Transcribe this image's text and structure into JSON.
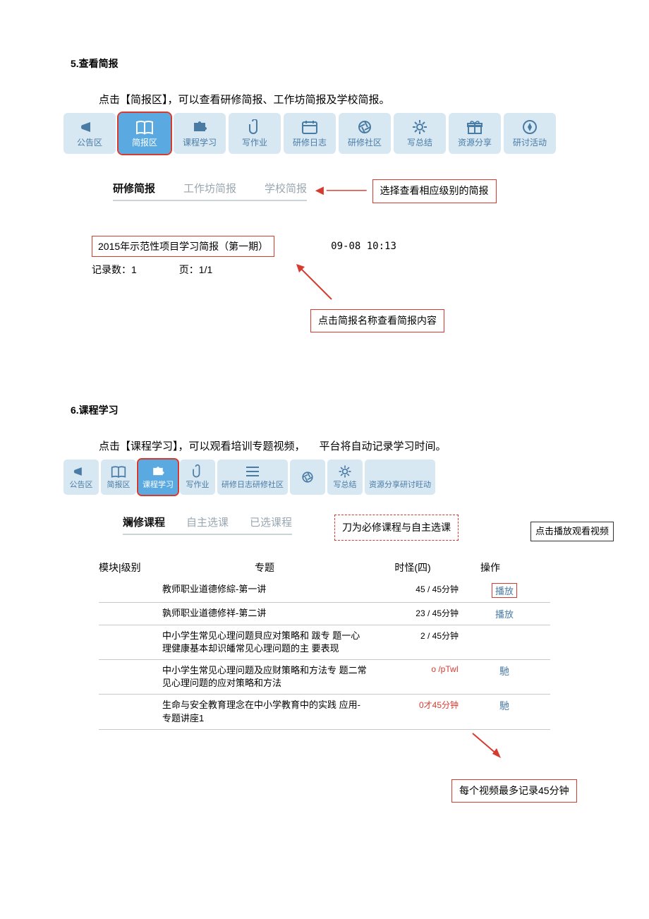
{
  "section5": {
    "heading": "5.查看简报",
    "intro": "点击【简报区】，可以查看研修简报、工作坊简报及学校简报。",
    "nav": [
      {
        "label": "公告区",
        "icon": "megaphone"
      },
      {
        "label": "简报区",
        "icon": "book",
        "active": true
      },
      {
        "label": "课程学习",
        "icon": "puzzle"
      },
      {
        "label": "写作业",
        "icon": "clip"
      },
      {
        "label": "研修日志",
        "icon": "calendar"
      },
      {
        "label": "研修社区",
        "icon": "aperture"
      },
      {
        "label": "写总结",
        "icon": "gear"
      },
      {
        "label": "资源分享",
        "icon": "gift"
      },
      {
        "label": "研讨活动",
        "icon": "compass"
      }
    ],
    "tabs": [
      "研修简报",
      "工作坊简报",
      "学校简报"
    ],
    "tabs_callout": "选择查看相应级别的简报",
    "report_title": "2015年示范性项目学习简报（第一期）",
    "report_time": "09-08 10:13",
    "record_count_label": "记录数：1",
    "page_label": "页：1/1",
    "name_callout": "点击简报名称查看简报内容"
  },
  "section6": {
    "heading": "6.课程学习",
    "intro_a": "点击【课程学习】，可以观看培训专题视频，",
    "intro_b": "平台将自动记录学习时间。",
    "nav": [
      {
        "label": "公告区",
        "icon": "megaphone"
      },
      {
        "label": "简报区",
        "icon": "book"
      },
      {
        "label": "课程学习",
        "icon": "puzzle",
        "active": true
      },
      {
        "label": "写作业",
        "icon": "clip"
      },
      {
        "label": "研修日志研修社区",
        "icon": "bars"
      },
      {
        "label": "",
        "icon": "aperture"
      },
      {
        "label": "写总结",
        "icon": "gear"
      },
      {
        "label": "资源分享研讨旺动",
        "icon": ""
      }
    ],
    "course_tabs": [
      "斓修课程",
      "自主选课",
      "已选课程"
    ],
    "course_tabs_callout": "刀为必修课程与自主选课",
    "play_callout": "点击播放观看视频",
    "table_head": {
      "mod": "模块|级别",
      "topic": "专题",
      "time": "时怪(四)",
      "op": "操作"
    },
    "rows": [
      {
        "topic": "教师职业道德修綜-第一讲",
        "time": "45 / 45分钟",
        "op": "播放",
        "boxed": true
      },
      {
        "topic": "孰师职业道德修祥-第二讲",
        "time": "23 / 45分钟",
        "op": "播放"
      },
      {
        "topic": "中小学生常见心理问题貝应对策略和 跋专 题一心理健康基本却识皤常见心理问题的主 要表现",
        "time": "2 / 45分钟",
        "op": ""
      },
      {
        "topic": "中小学生常见心理问题及应财策略和方法专 题二常见心理问题的应对策略和方法",
        "time": "o /pTwI",
        "op": "馳",
        "red": true
      },
      {
        "topic": "生命与安全教育理念在中小学教育中的实践 应用-专题讲座1",
        "time": "0才45分钟",
        "op": "馳",
        "red": true
      }
    ],
    "bottom_callout": "每个视频最多记录45分钟"
  },
  "colors": {
    "nav_bg": "#d7e8f3",
    "nav_active_bg": "#5aa9e1",
    "nav_text": "#4a7ba5",
    "highlight_border": "#d63b2f",
    "tab_inactive": "#9aa7b0"
  }
}
